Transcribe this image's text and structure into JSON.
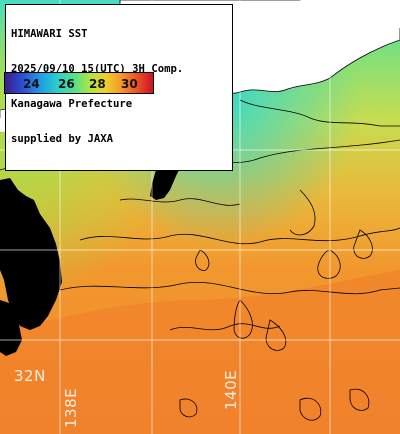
{
  "title_box": {
    "lines": [
      "HIMAWARI SST",
      "2025/09/10 15(UTC) 3H Comp.",
      "Kanagawa Prefecture",
      "supplied by JAXA"
    ]
  },
  "colorbar": {
    "ticks": [
      "24",
      "26",
      "28",
      "30"
    ]
  },
  "coordinates": {
    "latitude": "32N",
    "longitudes": [
      "138E",
      "140E"
    ]
  },
  "colors": {
    "land": "#ffffff",
    "cloud": "#000000",
    "sea_warm": "#f08a2e",
    "sea_cool": "#8ce07a",
    "grid": "#ffffff"
  }
}
